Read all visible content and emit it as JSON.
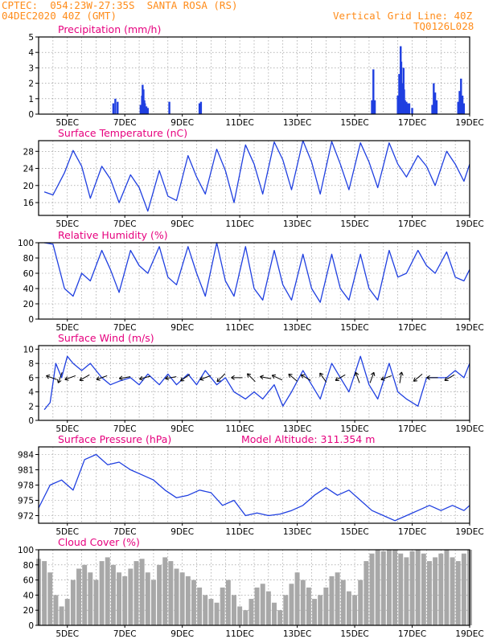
{
  "header": {
    "line1_left": "CPTEC:  054:23W-27:35S  SANTA ROSA (RS)",
    "line2_left": "04DEC2020 40Z (GMT)",
    "line1_right": "Vertical Grid Line: 40Z",
    "line2_right": "TQ0126L028"
  },
  "colors": {
    "header": "#ff8c1a",
    "panel_title": "#e6007e",
    "series_line": "#1f3fe0",
    "precip_bar": "#1f3fe0",
    "cloud_fill": "#a8a8a8",
    "grid": "#8a8a8a",
    "frame": "#000000"
  },
  "chart_data": [
    {
      "type": "bar",
      "title": "Precipitation (mm/h)",
      "x_tick_labels": [
        "5DEC",
        "7DEC",
        "9DEC",
        "11DEC",
        "13DEC",
        "15DEC",
        "17DEC",
        "19DEC"
      ],
      "ylim": [
        0,
        5
      ],
      "y_ticks": [
        0,
        1,
        2,
        3,
        4,
        5
      ],
      "grid": true,
      "x": [
        6.6,
        6.67,
        6.75,
        7.55,
        7.6,
        7.62,
        7.65,
        7.68,
        7.7,
        7.75,
        7.8,
        8.55,
        9.6,
        9.65,
        15.6,
        15.65,
        15.7,
        16.5,
        16.55,
        16.6,
        16.62,
        16.65,
        16.68,
        16.7,
        16.72,
        16.75,
        16.8,
        16.85,
        16.9,
        17.0,
        17.7,
        17.75,
        17.8,
        17.85,
        18.6,
        18.65,
        18.7,
        18.75,
        18.8
      ],
      "values": [
        0.7,
        1.0,
        0.8,
        0.6,
        1.2,
        1.9,
        1.6,
        0.9,
        0.7,
        0.5,
        0.4,
        0.8,
        0.7,
        0.8,
        0.9,
        2.9,
        0.9,
        1.2,
        2.6,
        4.4,
        3.4,
        1.8,
        2.0,
        3.0,
        1.6,
        0.9,
        0.8,
        0.7,
        0.7,
        0.4,
        0.6,
        2.0,
        1.4,
        0.9,
        0.8,
        1.5,
        2.3,
        1.2,
        0.7
      ]
    },
    {
      "type": "line",
      "title": "Surface Temperature (nC)",
      "x_tick_labels": [
        "5DEC",
        "7DEC",
        "9DEC",
        "11DEC",
        "13DEC",
        "15DEC",
        "17DEC",
        "19DEC"
      ],
      "ylim": [
        13,
        30.5
      ],
      "y_ticks": [
        16,
        20,
        24,
        28
      ],
      "grid": true,
      "x": [
        4.2,
        4.5,
        4.9,
        5.2,
        5.5,
        5.8,
        6.2,
        6.5,
        6.8,
        7.2,
        7.5,
        7.8,
        8.2,
        8.5,
        8.8,
        9.2,
        9.5,
        9.8,
        10.2,
        10.5,
        10.8,
        11.2,
        11.5,
        11.8,
        12.2,
        12.5,
        12.8,
        13.2,
        13.5,
        13.8,
        14.2,
        14.5,
        14.8,
        15.2,
        15.5,
        15.8,
        16.2,
        16.5,
        16.8,
        17.2,
        17.5,
        17.8,
        18.2,
        18.5,
        18.8,
        19.0
      ],
      "values": [
        18.5,
        17.8,
        23,
        28.2,
        24.5,
        17,
        24.5,
        21.5,
        16,
        22.5,
        19.5,
        14,
        23.5,
        17.5,
        16.5,
        27,
        22,
        18,
        28.5,
        23.5,
        16,
        29.5,
        25,
        18,
        30.2,
        26,
        19,
        30.5,
        25.5,
        18,
        30.3,
        25,
        19,
        30,
        25.5,
        19.5,
        30,
        25,
        22,
        27,
        24.5,
        20,
        28,
        25,
        21,
        25
      ]
    },
    {
      "type": "line",
      "title": "Relative Humidity (%)",
      "x_tick_labels": [
        "5DEC",
        "7DEC",
        "9DEC",
        "11DEC",
        "13DEC",
        "15DEC",
        "17DEC",
        "19DEC"
      ],
      "ylim": [
        0,
        100
      ],
      "y_ticks": [
        0,
        20,
        40,
        60,
        80,
        100
      ],
      "grid": true,
      "x": [
        4.2,
        4.5,
        4.9,
        5.2,
        5.5,
        5.8,
        6.2,
        6.5,
        6.8,
        7.2,
        7.5,
        7.8,
        8.2,
        8.5,
        8.8,
        9.2,
        9.5,
        9.8,
        10.2,
        10.5,
        10.8,
        11.2,
        11.5,
        11.8,
        12.2,
        12.5,
        12.8,
        13.2,
        13.5,
        13.8,
        14.2,
        14.5,
        14.8,
        15.2,
        15.5,
        15.8,
        16.2,
        16.5,
        16.8,
        17.2,
        17.5,
        17.8,
        18.2,
        18.5,
        18.8,
        19.0
      ],
      "values": [
        100,
        98,
        40,
        30,
        60,
        50,
        90,
        65,
        35,
        90,
        70,
        60,
        95,
        55,
        45,
        95,
        60,
        30,
        100,
        50,
        30,
        95,
        40,
        25,
        90,
        45,
        25,
        85,
        40,
        22,
        85,
        40,
        25,
        85,
        40,
        25,
        90,
        55,
        60,
        90,
        70,
        60,
        88,
        55,
        50,
        65
      ]
    },
    {
      "type": "line",
      "title": "Surface Wind (m/s)",
      "x_tick_labels": [
        "5DEC",
        "7DEC",
        "9DEC",
        "11DEC",
        "13DEC",
        "15DEC",
        "17DEC",
        "19DEC"
      ],
      "ylim": [
        0,
        10.5
      ],
      "y_ticks": [
        0,
        2,
        4,
        6,
        8,
        10
      ],
      "grid": true,
      "x": [
        4.2,
        4.4,
        4.6,
        4.8,
        5.0,
        5.2,
        5.5,
        5.8,
        6.2,
        6.5,
        6.8,
        7.2,
        7.5,
        7.8,
        8.2,
        8.5,
        8.8,
        9.2,
        9.5,
        9.8,
        10.2,
        10.5,
        10.8,
        11.2,
        11.5,
        11.8,
        12.2,
        12.5,
        12.8,
        13.2,
        13.5,
        13.8,
        14.2,
        14.5,
        14.8,
        15.2,
        15.5,
        15.8,
        16.2,
        16.5,
        16.8,
        17.2,
        17.5,
        17.8,
        18.2,
        18.5,
        18.8,
        19.0
      ],
      "values": [
        1.5,
        2.5,
        8,
        6,
        9,
        8,
        7,
        8,
        6,
        5,
        5.5,
        6,
        5,
        6.5,
        5,
        6.5,
        5,
        6.5,
        5,
        7,
        5,
        6,
        4,
        3,
        4,
        3,
        5,
        2,
        4,
        7,
        5,
        3,
        8,
        6,
        4,
        9,
        5,
        3,
        8,
        4,
        3,
        2,
        6,
        6,
        6,
        7,
        6,
        8
      ],
      "arrows": [
        {
          "x": 4.45,
          "dir_deg": 160
        },
        {
          "x": 4.75,
          "dir_deg": 250
        },
        {
          "x": 5.1,
          "dir_deg": 200
        },
        {
          "x": 5.6,
          "dir_deg": 210
        },
        {
          "x": 6.2,
          "dir_deg": 200
        },
        {
          "x": 7.0,
          "dir_deg": 190
        },
        {
          "x": 7.7,
          "dir_deg": 195
        },
        {
          "x": 8.6,
          "dir_deg": 190
        },
        {
          "x": 9.1,
          "dir_deg": 215
        },
        {
          "x": 9.8,
          "dir_deg": 200
        },
        {
          "x": 10.35,
          "dir_deg": 225
        },
        {
          "x": 10.9,
          "dir_deg": 180
        },
        {
          "x": 11.4,
          "dir_deg": 135
        },
        {
          "x": 11.9,
          "dir_deg": 170
        },
        {
          "x": 12.3,
          "dir_deg": 155
        },
        {
          "x": 12.85,
          "dir_deg": 140
        },
        {
          "x": 13.3,
          "dir_deg": 150
        },
        {
          "x": 13.9,
          "dir_deg": 125
        },
        {
          "x": 14.5,
          "dir_deg": 210
        },
        {
          "x": 15.1,
          "dir_deg": 110
        },
        {
          "x": 15.6,
          "dir_deg": 70
        },
        {
          "x": 16.1,
          "dir_deg": 200
        },
        {
          "x": 16.6,
          "dir_deg": 80
        },
        {
          "x": 17.2,
          "dir_deg": 220
        },
        {
          "x": 17.7,
          "dir_deg": 180
        },
        {
          "x": 18.3,
          "dir_deg": 210
        }
      ]
    },
    {
      "type": "line",
      "title": "Surface Pressure (hPa)",
      "x_tick_labels": [
        "5DEC",
        "7DEC",
        "9DEC",
        "11DEC",
        "13DEC",
        "15DEC",
        "17DEC",
        "19DEC"
      ],
      "ylim": [
        970.5,
        985.5
      ],
      "y_ticks": [
        972,
        975,
        978,
        981,
        984
      ],
      "grid": true,
      "x": [
        4.0,
        4.4,
        4.8,
        5.2,
        5.6,
        6.0,
        6.4,
        6.8,
        7.2,
        7.6,
        8.0,
        8.4,
        8.8,
        9.2,
        9.6,
        10.0,
        10.4,
        10.8,
        11.2,
        11.6,
        12.0,
        12.4,
        12.8,
        13.2,
        13.6,
        14.0,
        14.4,
        14.8,
        15.2,
        15.6,
        16.0,
        16.4,
        16.8,
        17.2,
        17.6,
        18.0,
        18.4,
        18.8,
        19.0
      ],
      "values": [
        973.5,
        978,
        979,
        977,
        983,
        984,
        982,
        982.5,
        981,
        980,
        979,
        977,
        975.5,
        976,
        977,
        976.5,
        974,
        975,
        972,
        972.5,
        972,
        972.3,
        973,
        974,
        976,
        977.5,
        976,
        977,
        975,
        973,
        972,
        971,
        972,
        973,
        974,
        973,
        974,
        973,
        974
      ]
    },
    {
      "type": "area",
      "title": "Cloud Cover (%)",
      "x_tick_labels": [
        "5DEC",
        "7DEC",
        "9DEC",
        "11DEC",
        "13DEC",
        "15DEC",
        "17DEC",
        "19DEC"
      ],
      "ylim": [
        0,
        100
      ],
      "y_ticks": [
        0,
        20,
        40,
        60,
        80,
        100
      ],
      "grid": true,
      "x": [
        4.0,
        4.2,
        4.4,
        4.6,
        4.8,
        5.0,
        5.2,
        5.4,
        5.6,
        5.8,
        6.0,
        6.2,
        6.4,
        6.6,
        6.8,
        7.0,
        7.2,
        7.4,
        7.6,
        7.8,
        8.0,
        8.2,
        8.4,
        8.6,
        8.8,
        9.0,
        9.2,
        9.4,
        9.6,
        9.8,
        10.0,
        10.2,
        10.4,
        10.6,
        10.8,
        11.0,
        11.2,
        11.4,
        11.6,
        11.8,
        12.0,
        12.2,
        12.4,
        12.6,
        12.8,
        13.0,
        13.2,
        13.4,
        13.6,
        13.8,
        14.0,
        14.2,
        14.4,
        14.6,
        14.8,
        15.0,
        15.2,
        15.4,
        15.6,
        15.8,
        16.0,
        16.2,
        16.4,
        16.6,
        16.8,
        17.0,
        17.2,
        17.4,
        17.6,
        17.8,
        18.0,
        18.2,
        18.4,
        18.6,
        18.8,
        19.0
      ],
      "values": [
        88,
        85,
        70,
        40,
        25,
        35,
        60,
        75,
        80,
        70,
        60,
        85,
        90,
        80,
        70,
        65,
        75,
        85,
        88,
        70,
        60,
        80,
        90,
        85,
        75,
        70,
        65,
        60,
        50,
        40,
        35,
        30,
        50,
        60,
        40,
        25,
        20,
        35,
        50,
        55,
        45,
        30,
        20,
        40,
        55,
        70,
        60,
        50,
        35,
        40,
        50,
        65,
        70,
        60,
        45,
        40,
        60,
        85,
        95,
        100,
        98,
        100,
        100,
        95,
        90,
        98,
        100,
        95,
        85,
        90,
        95,
        100,
        90,
        85,
        95,
        100
      ]
    }
  ],
  "panels_extra": {
    "pressure_note": "Model Altitude: 311.354 m"
  }
}
